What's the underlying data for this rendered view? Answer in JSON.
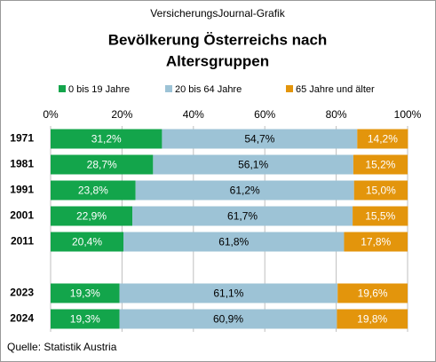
{
  "chart_data": {
    "type": "stacked-bar-horizontal",
    "header": "VersicherungsJournal-Grafik",
    "title": [
      "Bevölkerung Österreichs nach",
      "Altersgruppen"
    ],
    "source": "Quelle: Statistik Austria",
    "categories": [
      "1971",
      "1981",
      "1991",
      "2001",
      "2011",
      null,
      "2023",
      "2024"
    ],
    "series": [
      {
        "name": "0 bis 19 Jahre",
        "color": "#13a54b",
        "values": [
          31.2,
          28.7,
          23.8,
          22.9,
          20.4,
          null,
          19.3,
          19.3
        ],
        "value_labels": [
          "31,2%",
          "28,7%",
          "23,8%",
          "22,9%",
          "20,4%",
          null,
          "19,3%",
          "19,3%"
        ]
      },
      {
        "name": "20 bis 64 Jahre",
        "color": "#9dc3d6",
        "values": [
          54.7,
          56.1,
          61.2,
          61.7,
          61.8,
          null,
          61.1,
          60.9
        ],
        "value_labels": [
          "54,7%",
          "56,1%",
          "61,2%",
          "61,7%",
          "61,8%",
          null,
          "61,1%",
          "60,9%"
        ]
      },
      {
        "name": "65 Jahre und älter",
        "color": "#e3950c",
        "values": [
          14.2,
          15.2,
          15.0,
          15.5,
          17.8,
          null,
          19.6,
          19.8
        ],
        "value_labels": [
          "14,2%",
          "15,2%",
          "15,0%",
          "15,5%",
          "17,8%",
          null,
          "19,6%",
          "19,8%"
        ]
      }
    ],
    "xlim": [
      0,
      100
    ],
    "xticks": [
      {
        "value": 0,
        "label": "0%"
      },
      {
        "value": 20,
        "label": "20%"
      },
      {
        "value": 40,
        "label": "40%"
      },
      {
        "value": 60,
        "label": "60%"
      },
      {
        "value": 80,
        "label": "80%"
      },
      {
        "value": 100,
        "label": "100%"
      }
    ],
    "grid": true,
    "legend": "top"
  }
}
